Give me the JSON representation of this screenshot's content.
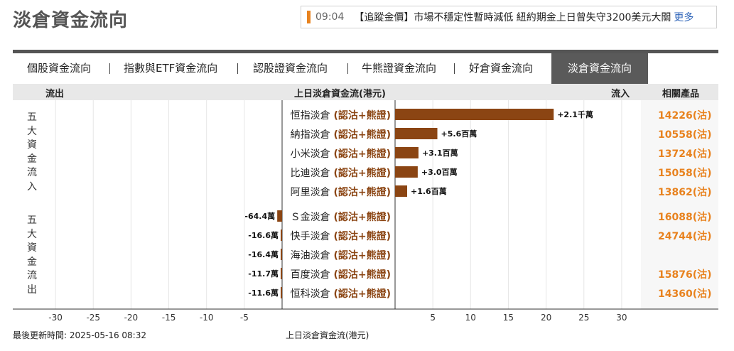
{
  "page_title": "淡倉資金流向",
  "news": {
    "time": "09:04",
    "text": "【追蹤金價】市場不穩定性暫時減低 紐約期金上日曾失守3200美元大關",
    "more": "更多"
  },
  "tabs": [
    {
      "label": "個股資金流向"
    },
    {
      "label": "指數與ETF資金流向"
    },
    {
      "label": "認股證資金流向"
    },
    {
      "label": "牛熊證資金流向"
    },
    {
      "label": "好倉資金流向"
    },
    {
      "label": "淡倉資金流向"
    }
  ],
  "header": {
    "outflow": "流出",
    "center": "上日淡倉資金流(港元)",
    "inflow": "流入",
    "related": "相關產品"
  },
  "groups": {
    "inflow": [
      "五",
      "大",
      "資",
      "金",
      "流",
      "入"
    ],
    "outflow": [
      "五",
      "大",
      "資",
      "金",
      "流",
      "出"
    ]
  },
  "related_suffix": "(沽)",
  "chart_data": {
    "type": "bar",
    "xlabel": "上日淡倉資金流(港元)",
    "xlim": [
      -35,
      35
    ],
    "xticks": [
      -30,
      -25,
      -20,
      -15,
      -10,
      -5,
      5,
      10,
      15,
      20,
      25,
      30
    ],
    "bar_color": "#8b4513",
    "rows": [
      {
        "name": "恒指淡倉",
        "tag": "(認沽+熊證)",
        "value": 21,
        "label": "+2.1千萬",
        "code": "14226"
      },
      {
        "name": "納指淡倉",
        "tag": "(認沽+熊證)",
        "value": 5.6,
        "label": "+5.6百萬",
        "code": "10558"
      },
      {
        "name": "小米淡倉",
        "tag": "(認沽+熊證)",
        "value": 3.1,
        "label": "+3.1百萬",
        "code": "13724"
      },
      {
        "name": "比迪淡倉",
        "tag": "(認沽+熊證)",
        "value": 3.0,
        "label": "+3.0百萬",
        "code": "15058"
      },
      {
        "name": "阿里淡倉",
        "tag": "(認沽+熊證)",
        "value": 1.6,
        "label": "+1.6百萬",
        "code": "13862"
      },
      {
        "name": "Ｓ金淡倉",
        "tag": "(認沽+熊證)",
        "value": -0.644,
        "label": "-64.4萬",
        "code": "16088"
      },
      {
        "name": "快手淡倉",
        "tag": "(認沽+熊證)",
        "value": -0.166,
        "label": "-16.6萬",
        "code": "24744"
      },
      {
        "name": "海油淡倉",
        "tag": "(認沽+熊證)",
        "value": -0.164,
        "label": "-16.4萬",
        "code": ""
      },
      {
        "name": "百度淡倉",
        "tag": "(認沽+熊證)",
        "value": -0.117,
        "label": "-11.7萬",
        "code": "15876"
      },
      {
        "name": "恒科淡倉",
        "tag": "(認沽+熊證)",
        "value": -0.116,
        "label": "-11.6萬",
        "code": "14360"
      }
    ]
  },
  "footer": {
    "updated": "最後更新時間: 2025-05-16 08:32",
    "axis_title": "上日淡倉資金流(港元)"
  },
  "colors": {
    "accent_orange": "#e8821e",
    "code_orange": "#e8821e",
    "tag_brown": "#8b4513",
    "active_tab_bg": "#5a5a5a"
  }
}
